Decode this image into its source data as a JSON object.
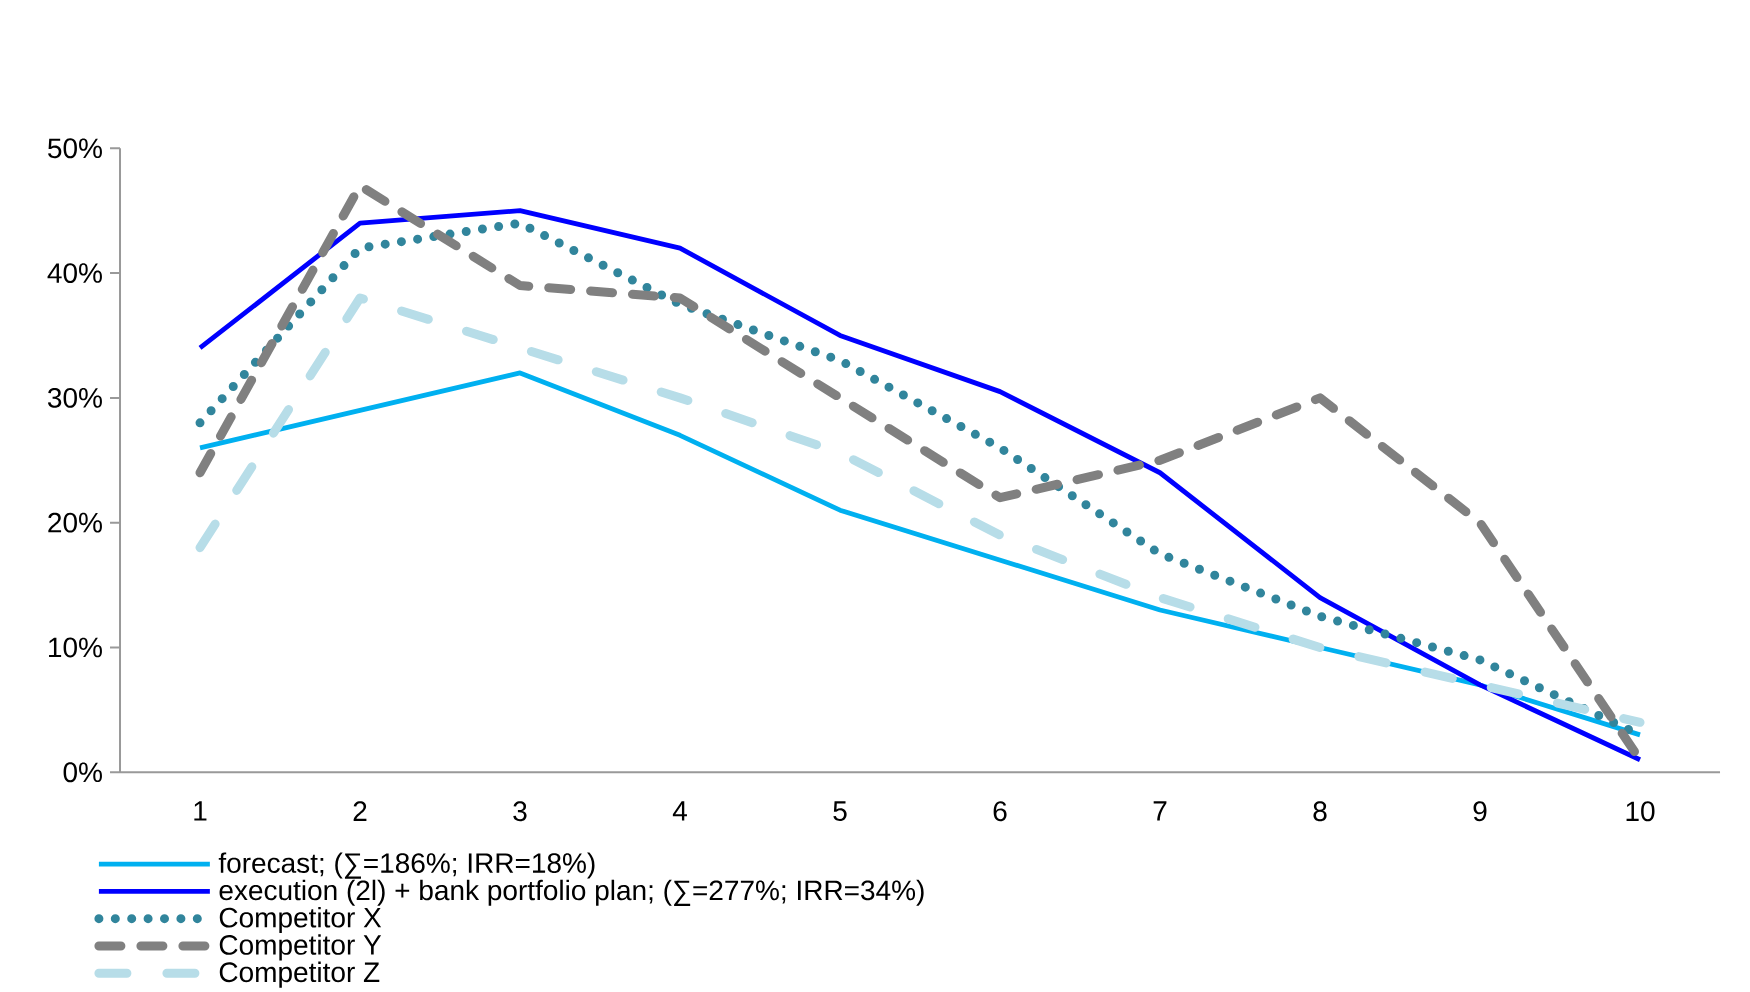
{
  "chart_data": {
    "type": "line",
    "categories": [
      "1",
      "2",
      "3",
      "4",
      "5",
      "6",
      "7",
      "8",
      "9",
      "10"
    ],
    "ylim": [
      0,
      50
    ],
    "yticks": [
      {
        "value": 0,
        "label": "0%"
      },
      {
        "value": 10,
        "label": "10%"
      },
      {
        "value": 20,
        "label": "20%"
      },
      {
        "value": 30,
        "label": "30%"
      },
      {
        "value": 40,
        "label": "40%"
      },
      {
        "value": 50,
        "label": "50%"
      }
    ],
    "grid": false,
    "legend": "bottom",
    "series": [
      {
        "name": "forecast; (∑=186%; IRR=18%)",
        "color": "#00b0f0",
        "line_style": "solid",
        "values": [
          26,
          29,
          32,
          27,
          21,
          17,
          13,
          10,
          7,
          3
        ]
      },
      {
        "name": "execution (2l) + bank portfolio plan; (∑=277%; IRR=34%)",
        "color": "#0000ff",
        "line_style": "solid",
        "values": [
          34,
          44,
          45,
          42,
          35,
          30.5,
          24,
          14,
          7,
          1
        ]
      },
      {
        "name": "Competitor X",
        "color": "#31859c",
        "line_style": "dotted",
        "values": [
          28,
          42,
          44,
          37.5,
          33,
          26,
          17.5,
          12.5,
          9,
          3
        ]
      },
      {
        "name": "Competitor Y",
        "color": "#808080",
        "line_style": "dashed",
        "values": [
          24,
          47,
          39,
          38,
          30,
          22,
          25,
          30,
          20,
          1
        ]
      },
      {
        "name": "Competitor Z",
        "color": "#b7dde8",
        "line_style": "dashdot",
        "values": [
          18,
          38,
          34,
          30,
          25.6,
          19,
          14,
          10,
          7,
          4
        ]
      }
    ]
  }
}
